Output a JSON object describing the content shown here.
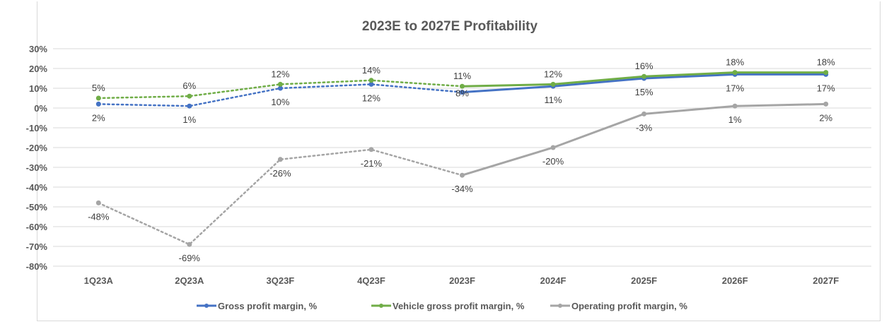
{
  "chart_data": {
    "type": "line",
    "title": "2023E to 2027E Profitability",
    "categories": [
      "1Q23A",
      "2Q23A",
      "3Q23F",
      "4Q23F",
      "2023F",
      "2024F",
      "2025F",
      "2026F",
      "2027F"
    ],
    "ylim": [
      -80,
      30
    ],
    "yticks": [
      "30%",
      "20%",
      "10%",
      "0%",
      "-10%",
      "-20%",
      "-30%",
      "-40%",
      "-50%",
      "-60%",
      "-70%",
      "-80%"
    ],
    "grid": true,
    "legend_position": "bottom",
    "line_style_note": "dotted through 2023F, solid from 2023F",
    "series": [
      {
        "name": "Gross profit margin, %",
        "color": "#4472c4",
        "values": [
          2,
          1,
          10,
          12,
          8,
          11,
          15,
          17,
          17
        ],
        "label_pos": "below"
      },
      {
        "name": "Vehicle gross profit margin, %",
        "color": "#70ad47",
        "values": [
          5,
          6,
          12,
          14,
          11,
          12,
          16,
          18,
          18
        ],
        "label_pos": "above"
      },
      {
        "name": "Operating profit margin, %",
        "color": "#a5a5a5",
        "values": [
          -48,
          -69,
          -26,
          -21,
          -34,
          -20,
          -3,
          1,
          2
        ],
        "label_pos": "below"
      }
    ]
  }
}
